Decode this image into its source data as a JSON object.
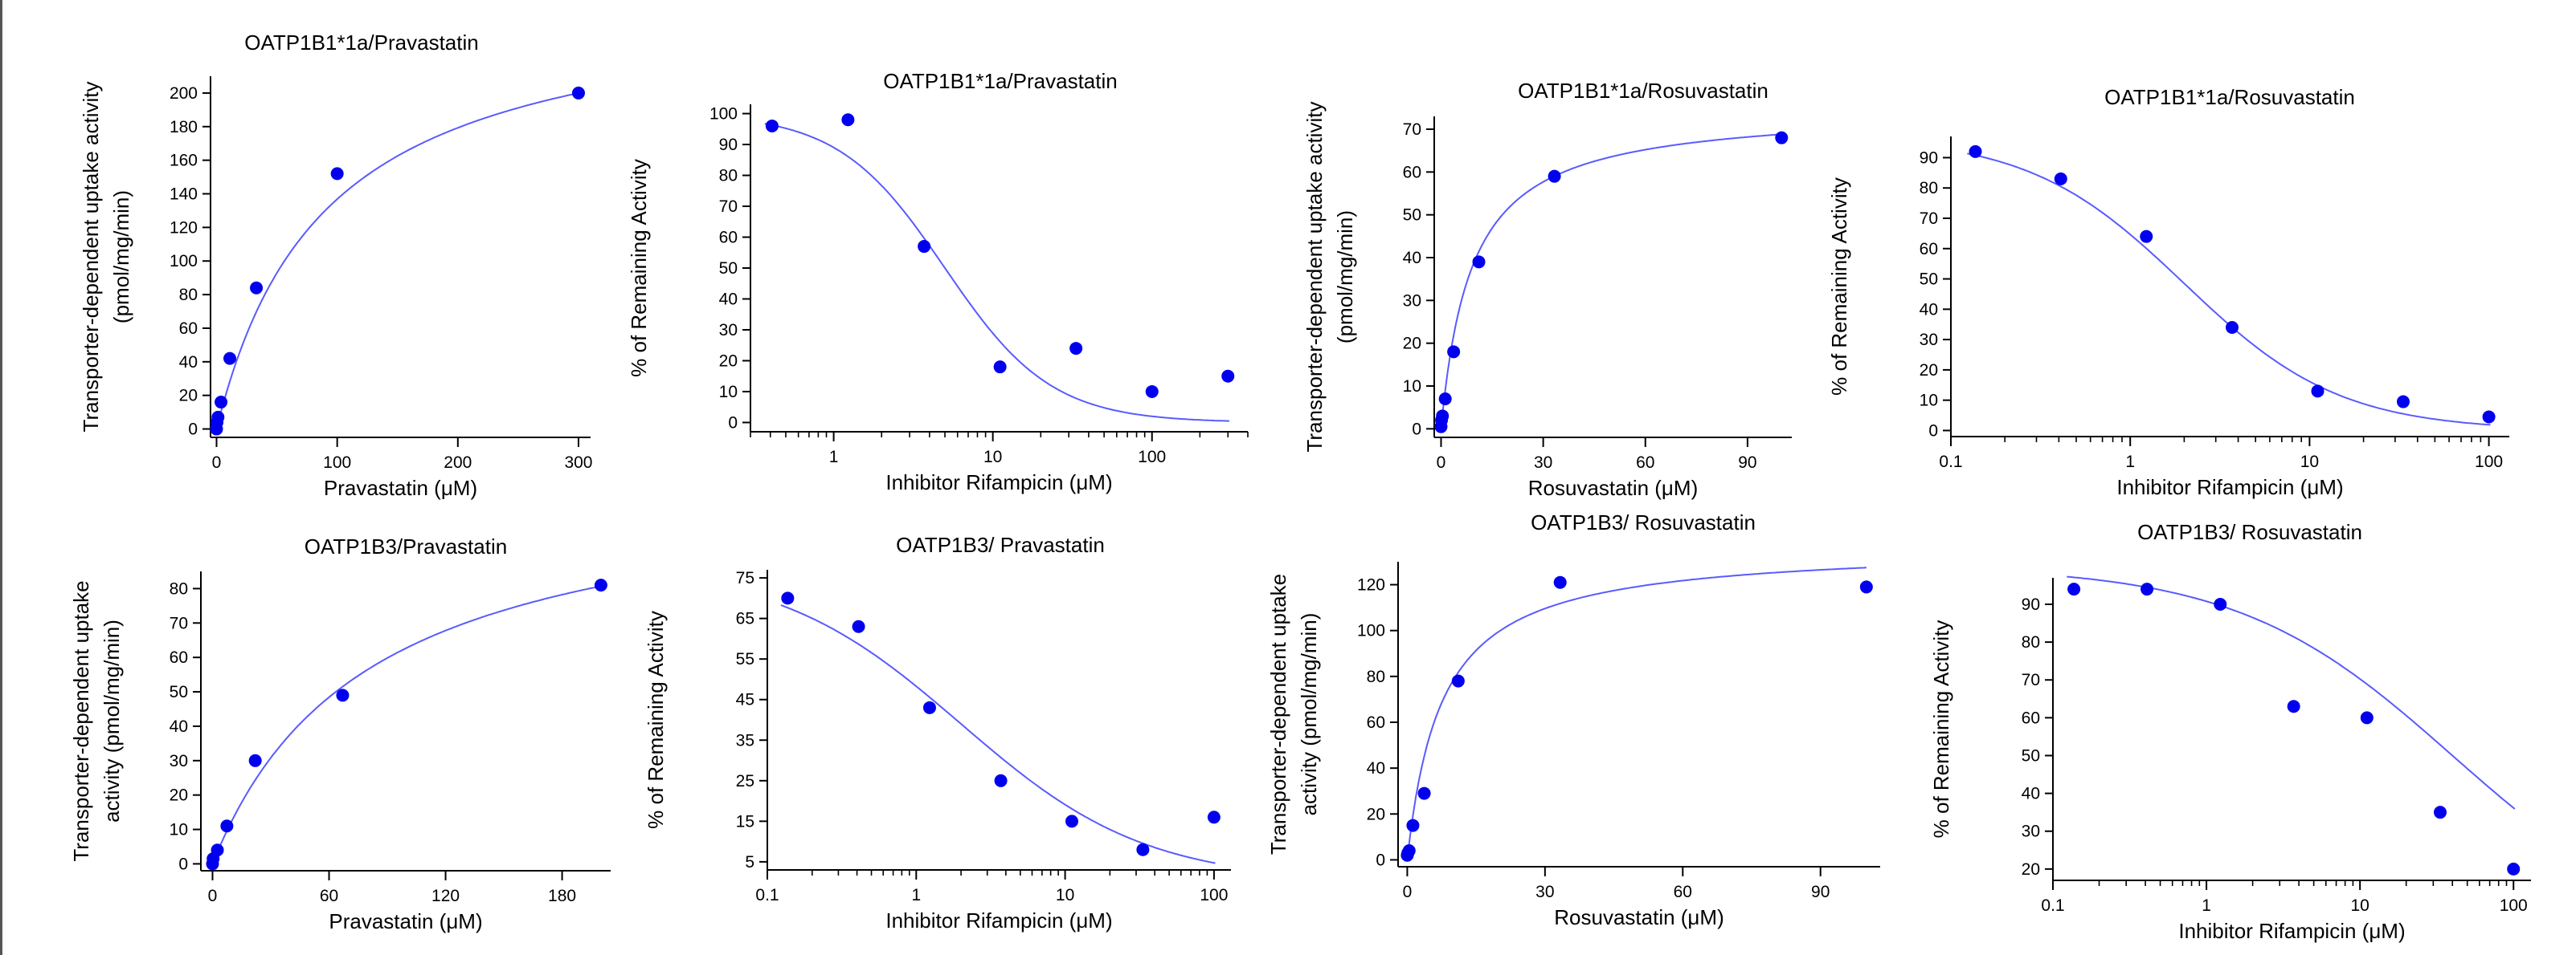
{
  "colors": {
    "marker": "#0000ee",
    "curve": "#5a5aff",
    "axis": "#000000",
    "text": "#000000"
  },
  "chart_data": [
    {
      "type": "scatter",
      "fit": "michaelis-menten",
      "xscale": "linear",
      "title": "OATP1B1*1a/Pravastatin",
      "ylabel": [
        "Transporter-dependent uptake activity",
        "(pmol/mg/min)"
      ],
      "xlabel": "Pravastatin (μM)",
      "xlim": [
        -5,
        310
      ],
      "ylim": [
        -5,
        210
      ],
      "xticks": [
        0,
        100,
        200,
        300
      ],
      "yticks": [
        0,
        20,
        40,
        60,
        80,
        100,
        120,
        140,
        160,
        180,
        200
      ],
      "x": [
        0,
        0.4,
        1.2,
        3.7,
        11,
        33,
        100,
        300
      ],
      "y": [
        0,
        4,
        7,
        16,
        42,
        84,
        152,
        200
      ],
      "curve": {
        "vmax": 260,
        "km": 90
      }
    },
    {
      "type": "scatter",
      "fit": "inhibition",
      "xscale": "log",
      "title": "OATP1B1*1a/Pravastatin",
      "ylabel": [
        "% of Remaining Activity"
      ],
      "xlabel": "Inhibitor Rifampicin (μM)",
      "xlim": [
        0.3,
        400
      ],
      "ylim": [
        -3,
        103
      ],
      "xticks": [
        1,
        10,
        100
      ],
      "yticks": [
        0,
        10,
        20,
        30,
        40,
        50,
        60,
        70,
        80,
        90,
        100
      ],
      "x": [
        0.41,
        1.23,
        3.7,
        11.1,
        33.3,
        100,
        300
      ],
      "y": [
        96,
        98,
        57,
        18,
        24,
        10,
        15
      ],
      "curve": {
        "top": 100,
        "bottom": 0,
        "ic50": 5,
        "hill": 1.3
      }
    },
    {
      "type": "scatter",
      "fit": "michaelis-menten",
      "xscale": "linear",
      "title": "OATP1B1*1a/Rosuvastatin",
      "ylabel": [
        "Transporter-dependent uptake activity",
        "(pmol/mg/min)"
      ],
      "xlabel": "Rosuvastatin (μM)",
      "xlim": [
        -2,
        103
      ],
      "ylim": [
        -2,
        73
      ],
      "xticks": [
        0,
        30,
        60,
        90
      ],
      "yticks": [
        0,
        10,
        20,
        30,
        40,
        50,
        60,
        70
      ],
      "x": [
        0,
        0.14,
        0.41,
        1.23,
        3.7,
        11.1,
        33.3,
        100
      ],
      "y": [
        0.5,
        2,
        3,
        7,
        18,
        39,
        59,
        68
      ],
      "curve": {
        "vmax": 75,
        "km": 9
      }
    },
    {
      "type": "scatter",
      "fit": "inhibition",
      "xscale": "log",
      "title": "OATP1B1*1a/Rosuvastatin",
      "ylabel": [
        "% of Remaining Activity"
      ],
      "xlabel": "Inhibitor Rifampicin (μM)",
      "xlim": [
        0.1,
        130
      ],
      "ylim": [
        -2,
        97
      ],
      "xticks": [
        0.1,
        1,
        10,
        100
      ],
      "yticks": [
        0,
        10,
        20,
        30,
        40,
        50,
        60,
        70,
        80,
        90
      ],
      "x": [
        0.137,
        0.41,
        1.23,
        3.7,
        11.1,
        33.3,
        100
      ],
      "y": [
        92,
        83,
        64,
        34,
        13,
        9.5,
        4.5
      ],
      "curve": {
        "top": 97,
        "bottom": 0,
        "ic50": 2,
        "hill": 1
      }
    },
    {
      "type": "scatter",
      "fit": "michaelis-menten",
      "xscale": "linear",
      "title": "OATP1B3/Pravastatin",
      "ylabel": [
        "Transporter-dependent uptake",
        "activity (pmol/mg/min)"
      ],
      "xlabel": "Pravastatin (μM)",
      "xlim": [
        -6,
        205
      ],
      "ylim": [
        -2,
        85
      ],
      "xticks": [
        0,
        60,
        120,
        180
      ],
      "yticks": [
        0,
        10,
        20,
        30,
        40,
        50,
        60,
        70,
        80
      ],
      "x": [
        0,
        0.3,
        2.5,
        7.4,
        22,
        67,
        200
      ],
      "y": [
        0,
        1.5,
        4,
        11,
        30,
        49,
        81
      ],
      "curve": {
        "vmax": 113,
        "km": 80
      }
    },
    {
      "type": "scatter",
      "fit": "inhibition",
      "xscale": "log",
      "title": "OATP1B3/  Pravastatin",
      "ylabel": [
        "% of Remaining Activity"
      ],
      "xlabel": "Inhibitor Rifampicin (μM)",
      "xlim": [
        0.1,
        130
      ],
      "ylim": [
        3,
        77
      ],
      "xticks": [
        0.1,
        1,
        10,
        100
      ],
      "yticks": [
        5,
        15,
        25,
        35,
        45,
        55,
        65,
        75
      ],
      "x": [
        0.137,
        0.41,
        1.23,
        3.7,
        11.1,
        33.3,
        100
      ],
      "y": [
        70,
        63,
        43,
        25,
        15,
        8,
        16
      ],
      "curve": {
        "top": 78,
        "bottom": 0,
        "ic50": 2,
        "hill": 0.7
      }
    },
    {
      "type": "scatter",
      "fit": "michaelis-menten",
      "xscale": "linear",
      "title": "OATP1B3/  Rosuvastatin",
      "ylabel": [
        "Transporter-dependent uptake",
        "activity (pmol/mg/min)"
      ],
      "xlabel": "Rosuvastatin (μM)",
      "xlim": [
        -2,
        103
      ],
      "ylim": [
        -3,
        130
      ],
      "xticks": [
        0,
        30,
        60,
        90
      ],
      "yticks": [
        0,
        20,
        40,
        60,
        80,
        100,
        120
      ],
      "x": [
        0,
        0.14,
        0.41,
        1.23,
        3.7,
        11.1,
        33.3,
        100
      ],
      "y": [
        2,
        3,
        4,
        15,
        29,
        78,
        121,
        119
      ],
      "curve": {
        "vmax": 137,
        "km": 7.5
      }
    },
    {
      "type": "scatter",
      "fit": "inhibition",
      "xscale": "log",
      "title": "OATP1B3/  Rosuvastatin",
      "ylabel": [
        "% of Remaining Activity"
      ],
      "xlabel": "Inhibitor Rifampicin (μM)",
      "xlim": [
        0.1,
        130
      ],
      "ylim": [
        17,
        97
      ],
      "xticks": [
        0.1,
        1,
        10,
        100
      ],
      "yticks": [
        20,
        30,
        40,
        50,
        60,
        70,
        80,
        90
      ],
      "x": [
        0.137,
        0.41,
        1.23,
        3.7,
        11.1,
        33.3,
        100
      ],
      "y": [
        94,
        94,
        90,
        63,
        60,
        35,
        20
      ],
      "curve": {
        "top": 100,
        "bottom": 0,
        "ic50": 40,
        "hill": 0.62
      }
    }
  ]
}
